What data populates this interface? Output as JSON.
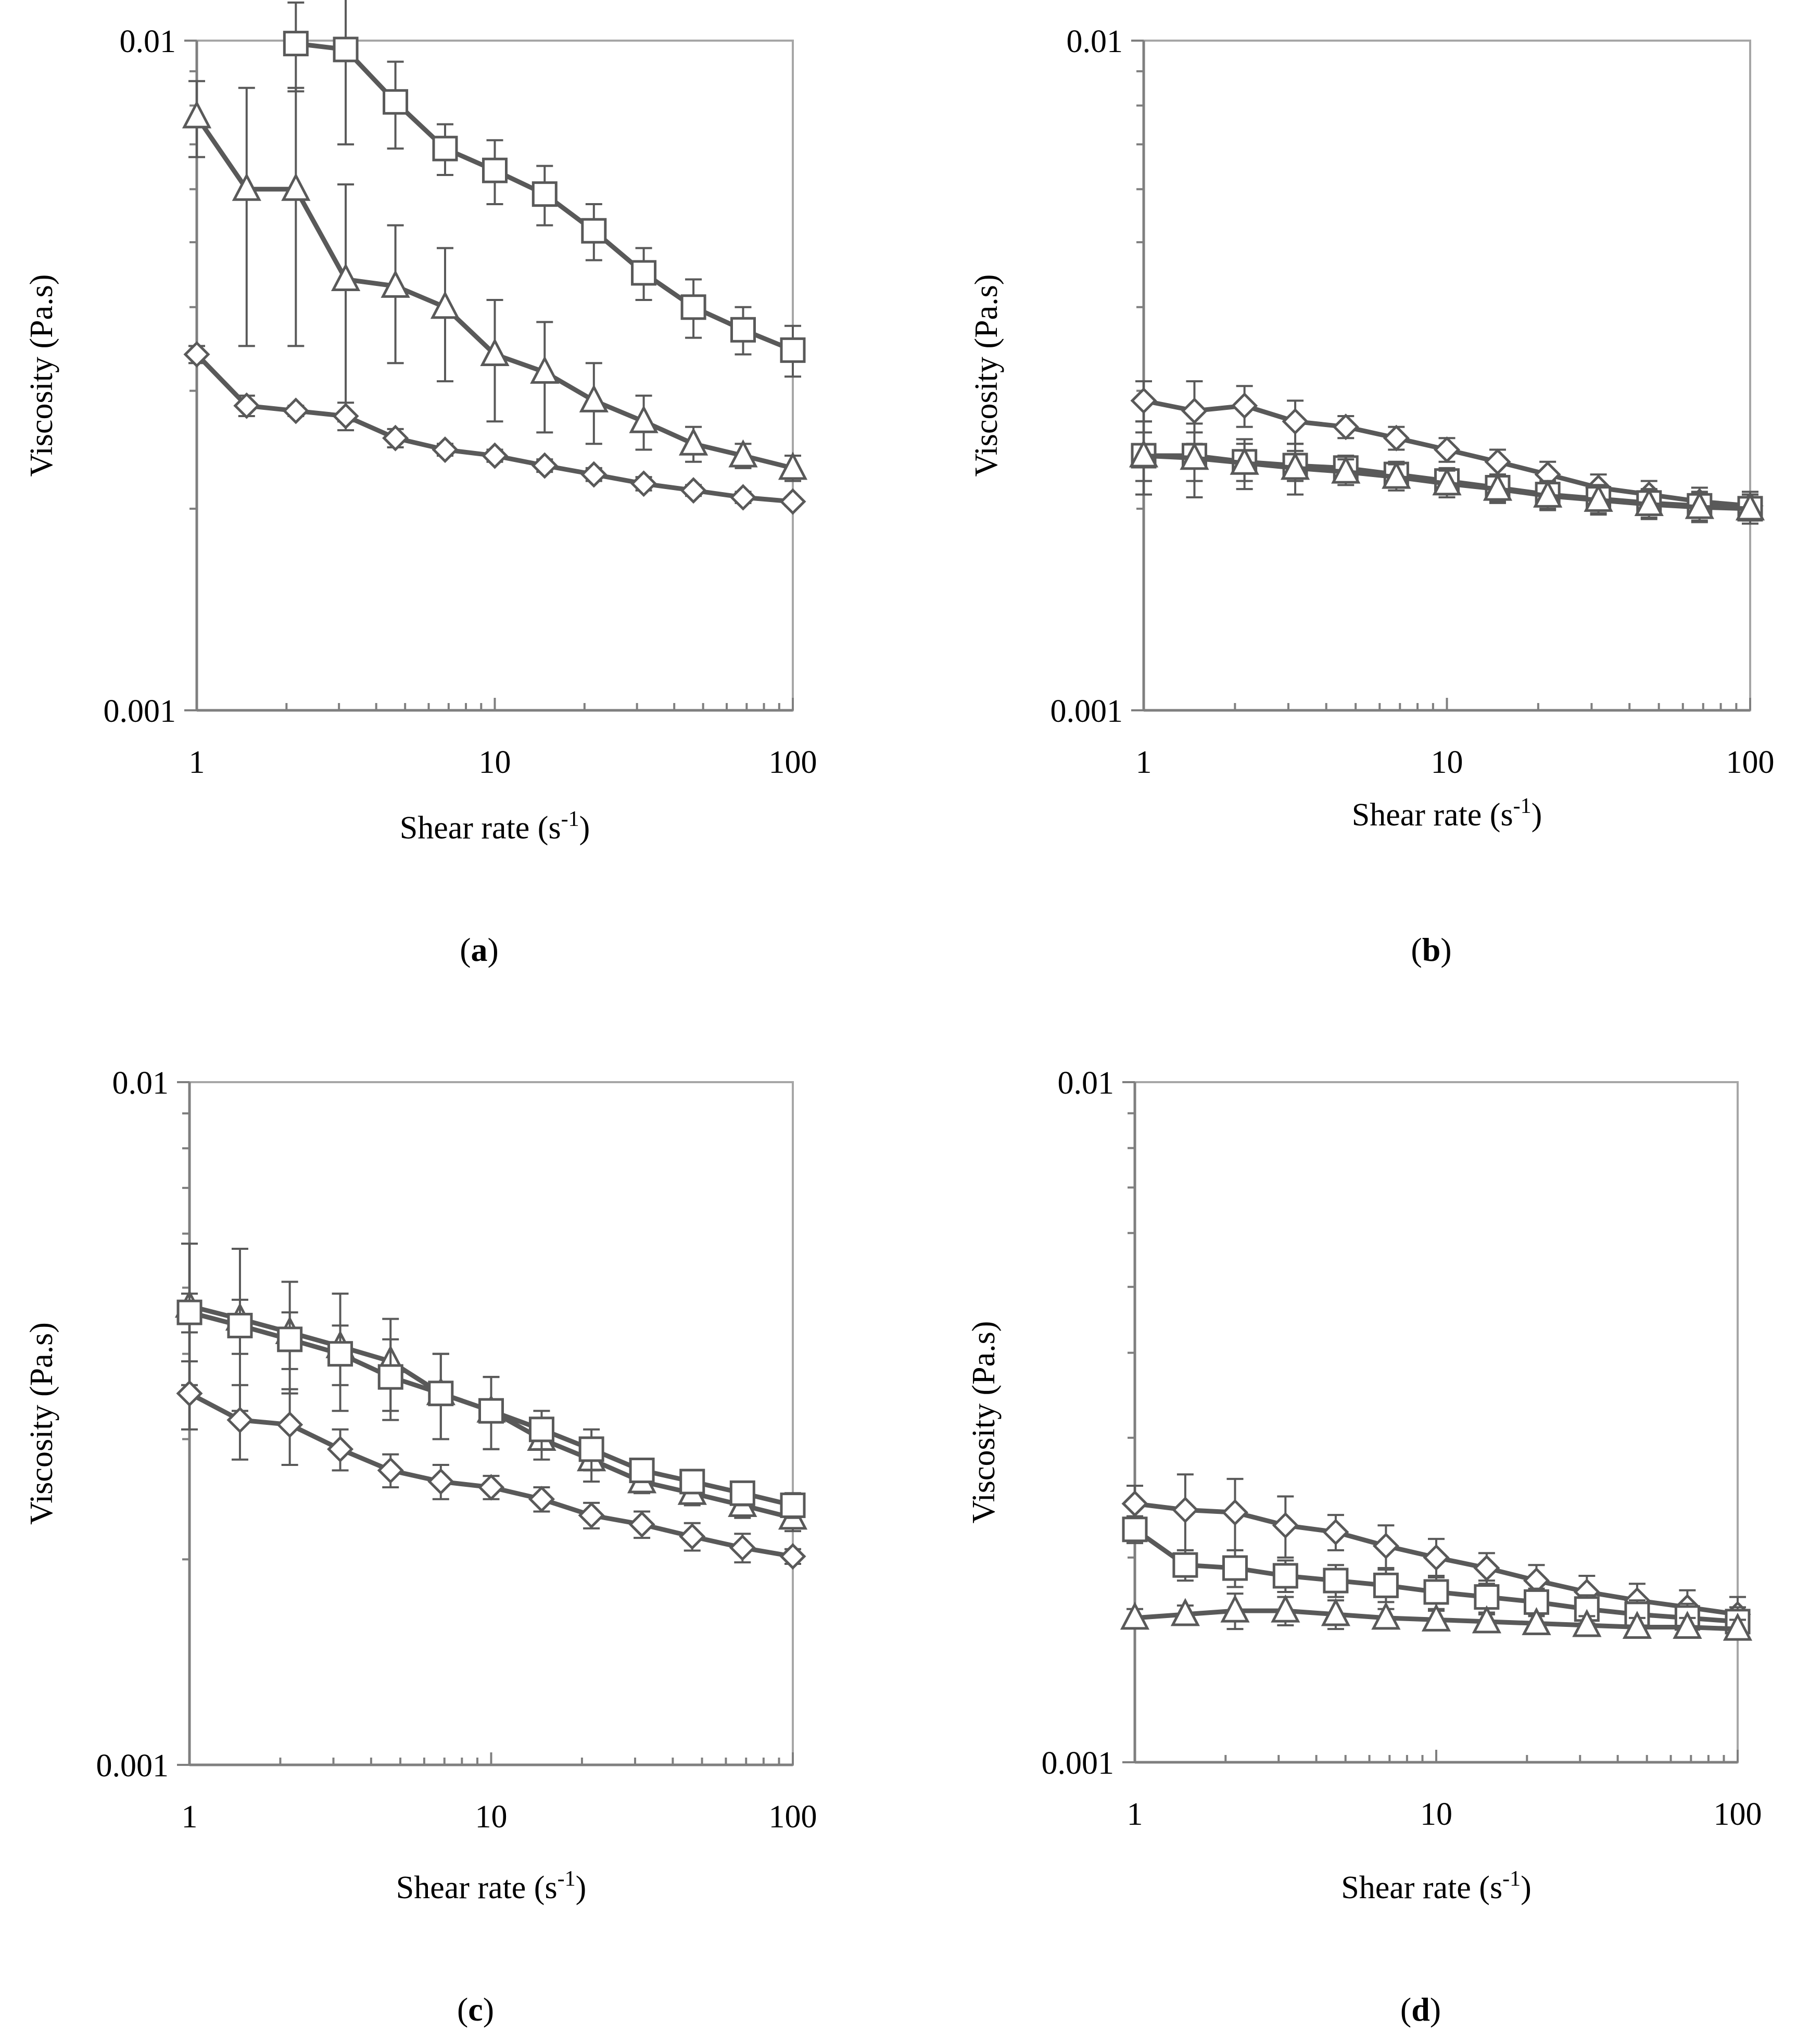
{
  "figure": {
    "line_color": "#595959",
    "panels": [
      {
        "label": "a",
        "caption_open": "(",
        "caption_close": ")",
        "chart_data": {
          "type": "line",
          "x_scale": "log",
          "y_scale": "log",
          "xlabel": "Shear rate (s",
          "xlabel_sup": "-1",
          "xlabel_close": ")",
          "ylabel": "Viscosity (Pa.s)",
          "xlim": [
            1,
            100
          ],
          "ylim": [
            0.001,
            0.01
          ],
          "x_ticks": [
            "1",
            "10",
            "100"
          ],
          "y_ticks": [
            "0.001",
            "0.01"
          ],
          "grid": false,
          "x": [
            1,
            1.47,
            2.15,
            3.16,
            4.64,
            6.81,
            10,
            14.7,
            21.5,
            31.6,
            46.4,
            68.1,
            100
          ],
          "series": [
            {
              "marker": "square",
              "values": [
                null,
                null,
                0.0099,
                0.0097,
                0.0081,
                0.0069,
                0.0064,
                0.0059,
                0.0052,
                0.0045,
                0.004,
                0.0037,
                0.00345
              ],
              "errors": [
                null,
                null,
                0.0015,
                0.0027,
                0.0012,
                0.0006,
                0.0007,
                0.0006,
                0.0005,
                0.0004,
                0.0004,
                0.0003,
                0.0003
              ]
            },
            {
              "marker": "triangle",
              "values": [
                0.0077,
                0.006,
                0.006,
                0.0044,
                0.0043,
                0.004,
                0.0034,
                0.0032,
                0.0029,
                0.0027,
                0.0025,
                0.0024,
                0.0023
              ],
              "errors": [
                0.001,
                0.0025,
                0.0025,
                0.0017,
                0.001,
                0.0009,
                0.0007,
                0.0006,
                0.0004,
                0.00025,
                0.00015,
                0.0001,
                0.0001
              ]
            },
            {
              "marker": "diamond",
              "values": [
                0.0034,
                0.00285,
                0.0028,
                0.00275,
                0.00255,
                0.00245,
                0.0024,
                0.00232,
                0.00225,
                0.00218,
                0.00213,
                0.00208,
                0.00205
              ],
              "errors": [
                0.0001,
                0.0001,
                5e-05,
                0.00013,
                8e-05,
                5e-05,
                5e-05,
                5e-05,
                5e-05,
                5e-05,
                4e-05,
                4e-05,
                3e-05
              ]
            }
          ]
        }
      },
      {
        "label": "b",
        "caption_open": "(",
        "caption_close": ")",
        "chart_data": {
          "type": "line",
          "x_scale": "log",
          "y_scale": "log",
          "xlabel": "Shear rate (s",
          "xlabel_sup": "-1",
          "xlabel_close": ")",
          "ylabel": "Viscosity (Pa.s)",
          "xlim": [
            1,
            100
          ],
          "ylim": [
            0.001,
            0.01
          ],
          "x_ticks": [
            "1",
            "10",
            "100"
          ],
          "y_ticks": [
            "0.001",
            "0.01"
          ],
          "grid": false,
          "x": [
            1,
            1.47,
            2.15,
            3.16,
            4.64,
            6.81,
            10,
            14.7,
            21.5,
            31.6,
            46.4,
            68.1,
            100
          ],
          "series": [
            {
              "marker": "diamond",
              "values": [
                0.0029,
                0.0028,
                0.00285,
                0.0027,
                0.00265,
                0.00255,
                0.00245,
                0.00235,
                0.00225,
                0.00215,
                0.0021,
                0.00205,
                0.00202
              ],
              "errors": [
                0.0002,
                0.0003,
                0.0002,
                0.0002,
                0.0001,
                0.0001,
                0.0001,
                0.0001,
                0.0001,
                0.0001,
                0.0001,
                0.0001,
                0.0001
              ]
            },
            {
              "marker": "square",
              "values": [
                0.0024,
                0.0024,
                0.00235,
                0.00232,
                0.0023,
                0.00225,
                0.0022,
                0.00215,
                0.0021,
                0.00207,
                0.00204,
                0.00202,
                0.002
              ],
              "errors": [
                0.0002,
                0.0002,
                0.00015,
                0.00012,
                0.0001,
                0.0001,
                0.0001,
                0.0001,
                0.0001,
                0.0001,
                0.0001,
                0.0001,
                0.0001
              ]
            },
            {
              "marker": "triangle",
              "values": [
                0.0024,
                0.00238,
                0.00234,
                0.0023,
                0.00227,
                0.00223,
                0.00218,
                0.00214,
                0.00209,
                0.00206,
                0.00203,
                0.00201,
                0.002
              ],
              "errors": [
                0.0003,
                0.0003,
                0.0002,
                0.0002,
                0.0001,
                0.0001,
                0.0001,
                0.0001,
                0.0001,
                0.0001,
                0.0001,
                0.0001,
                0.0001
              ]
            }
          ]
        }
      },
      {
        "label": "c",
        "caption_open": "(",
        "caption_close": ")",
        "chart_data": {
          "type": "line",
          "x_scale": "log",
          "y_scale": "log",
          "xlabel": "Shear rate (s",
          "xlabel_sup": "-1",
          "xlabel_close": ")",
          "ylabel": "Viscosity (Pa.s)",
          "xlim": [
            1,
            100
          ],
          "ylim": [
            0.001,
            0.01
          ],
          "x_ticks": [
            "1",
            "10",
            "100"
          ],
          "y_ticks": [
            "0.001",
            "0.01"
          ],
          "grid": false,
          "x": [
            1,
            1.47,
            2.15,
            3.16,
            4.64,
            6.81,
            10,
            14.7,
            21.5,
            31.6,
            46.4,
            68.1,
            100
          ],
          "series": [
            {
              "marker": "triangle",
              "values": [
                0.0047,
                0.0045,
                0.0043,
                0.0041,
                0.0039,
                0.0035,
                0.0033,
                0.003,
                0.0028,
                0.0026,
                0.0025,
                0.0024,
                0.0023
              ],
              "errors": [
                0.0011,
                0.0012,
                0.0008,
                0.0008,
                0.0006,
                0.0005,
                0.0004,
                0.0002,
                0.0002,
                0.0001,
                0.0001,
                0.0001,
                0.0001
              ]
            },
            {
              "marker": "square",
              "values": [
                0.0046,
                0.0044,
                0.0042,
                0.004,
                0.0037,
                0.0035,
                0.0033,
                0.0031,
                0.0029,
                0.0027,
                0.0026,
                0.0025,
                0.0024
              ],
              "errors": [
                0.0003,
                0.0004,
                0.0004,
                0.0004,
                0.0005,
                0.0005,
                0.0004,
                0.0002,
                0.0002,
                0.0001,
                0.0001,
                0.0001,
                0.0001
              ]
            },
            {
              "marker": "diamond",
              "values": [
                0.0035,
                0.0032,
                0.00315,
                0.0029,
                0.0027,
                0.0026,
                0.00255,
                0.00245,
                0.00232,
                0.00225,
                0.00216,
                0.00208,
                0.00202
              ],
              "errors": [
                0.0004,
                0.0004,
                0.0004,
                0.0002,
                0.00015,
                0.00015,
                0.0001,
                0.0001,
                0.0001,
                0.0001,
                0.0001,
                0.0001,
                5e-05
              ]
            }
          ]
        }
      },
      {
        "label": "d",
        "caption_open": "(",
        "caption_close": ")",
        "chart_data": {
          "type": "line",
          "x_scale": "log",
          "y_scale": "log",
          "xlabel": "Shear rate (s",
          "xlabel_sup": "-1",
          "xlabel_close": ")",
          "ylabel": "Viscosity (Pa.s)",
          "xlim": [
            1,
            100
          ],
          "ylim": [
            0.001,
            0.01
          ],
          "x_ticks": [
            "1",
            "10",
            "100"
          ],
          "y_ticks": [
            "0.001",
            "0.01"
          ],
          "grid": false,
          "x": [
            1,
            1.47,
            2.15,
            3.16,
            4.64,
            6.81,
            10,
            14.7,
            21.5,
            31.6,
            46.4,
            68.1,
            100
          ],
          "series": [
            {
              "marker": "diamond",
              "values": [
                0.0024,
                0.00235,
                0.00233,
                0.00223,
                0.00218,
                0.00208,
                0.002,
                0.00193,
                0.00185,
                0.00178,
                0.00173,
                0.00169,
                0.00165
              ],
              "errors": [
                0.00015,
                0.0003,
                0.00028,
                0.00023,
                0.00013,
                0.00015,
                0.00013,
                0.0001,
                0.0001,
                0.0001,
                0.0001,
                0.0001,
                0.0001
              ]
            },
            {
              "marker": "square",
              "values": [
                0.0022,
                0.00195,
                0.00193,
                0.00188,
                0.00185,
                0.00182,
                0.00178,
                0.00175,
                0.00172,
                0.00168,
                0.00165,
                0.00163,
                0.00161
              ],
              "errors": [
                0.0001,
                0.0001,
                0.00012,
                0.0001,
                0.0001,
                0.0001,
                0.0001,
                0.0001,
                8e-05,
                8e-05,
                8e-05,
                8e-05,
                8e-05
              ]
            },
            {
              "marker": "triangle",
              "values": [
                0.00163,
                0.00165,
                0.00167,
                0.00167,
                0.00165,
                0.00163,
                0.00162,
                0.00161,
                0.0016,
                0.00159,
                0.00158,
                0.00158,
                0.00157
              ],
              "errors": [
                5e-05,
                5e-05,
                0.0001,
                8e-05,
                8e-05,
                5e-05,
                5e-05,
                5e-05,
                5e-05,
                5e-05,
                5e-05,
                5e-05,
                5e-05
              ]
            }
          ]
        }
      }
    ]
  }
}
